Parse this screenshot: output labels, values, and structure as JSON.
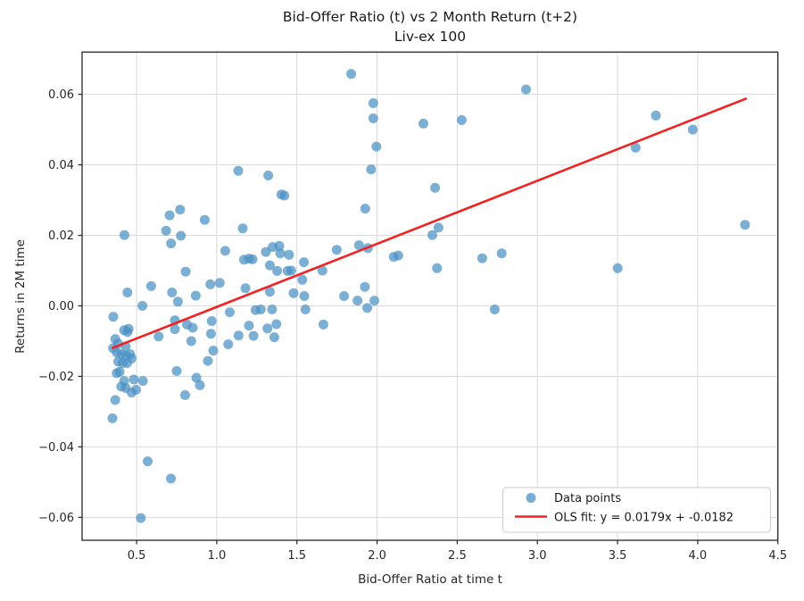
{
  "chart_data": {
    "type": "scatter",
    "title": "Bid-Offer Ratio (t) vs 2 Month Return (t+2)",
    "subtitle": "Liv-ex 100",
    "xlabel": "Bid-Offer Ratio at time t",
    "ylabel": "Returns in 2M time",
    "xlim": [
      0.16,
      4.5
    ],
    "ylim": [
      -0.0665,
      0.072
    ],
    "xticks": [
      0.5,
      1.0,
      1.5,
      2.0,
      2.5,
      3.0,
      3.5,
      4.0,
      4.5
    ],
    "xtick_labels": [
      "0.5",
      "1.0",
      "1.5",
      "2.0",
      "2.5",
      "3.0",
      "3.5",
      "4.0",
      "4.5"
    ],
    "yticks": [
      -0.06,
      -0.04,
      -0.02,
      0.0,
      0.02,
      0.04,
      0.06
    ],
    "ytick_labels": [
      "−0.06",
      "−0.04",
      "−0.02",
      "0.00",
      "0.02",
      "0.04",
      "0.06"
    ],
    "grid": true,
    "legend": {
      "position": "lower right",
      "entries": [
        {
          "label": "Data points",
          "marker": "dot"
        },
        {
          "label": "OLS fit: y = 0.0179x + -0.0182",
          "marker": "line"
        }
      ]
    },
    "ols_fit": {
      "slope": 0.0179,
      "intercept": -0.0182,
      "x_start": 0.35,
      "x_end": 4.3
    },
    "colors": {
      "point": "#4a90c4",
      "fit_line": "#f32222",
      "grid": "#d9d9d9",
      "axis": "#262626",
      "legend_border": "#cccccc"
    },
    "points": [
      [
        0.424,
        0.0201
      ],
      [
        0.684,
        0.0213
      ],
      [
        0.706,
        0.0257
      ],
      [
        0.771,
        0.0273
      ],
      [
        0.776,
        0.0199
      ],
      [
        0.715,
        0.0177
      ],
      [
        0.806,
        0.0097
      ],
      [
        0.925,
        0.0244
      ],
      [
        1.134,
        0.0383
      ],
      [
        1.321,
        0.037
      ],
      [
        1.403,
        0.0316
      ],
      [
        1.422,
        0.0313
      ],
      [
        1.839,
        0.0658
      ],
      [
        1.976,
        0.0575
      ],
      [
        1.976,
        0.0532
      ],
      [
        1.996,
        0.0452
      ],
      [
        1.963,
        0.0387
      ],
      [
        1.926,
        0.0276
      ],
      [
        1.887,
        0.0172
      ],
      [
        1.943,
        0.0164
      ],
      [
        1.748,
        0.0159
      ],
      [
        2.289,
        0.0517
      ],
      [
        2.528,
        0.0527
      ],
      [
        2.362,
        0.0335
      ],
      [
        2.345,
        0.0201
      ],
      [
        2.383,
        0.0222
      ],
      [
        2.929,
        0.0614
      ],
      [
        3.739,
        0.054
      ],
      [
        3.969,
        0.05
      ],
      [
        3.613,
        0.0449
      ],
      [
        4.295,
        0.023
      ],
      [
        1.053,
        0.0156
      ],
      [
        1.162,
        0.022
      ],
      [
        1.17,
        0.0131
      ],
      [
        1.201,
        0.0134
      ],
      [
        1.223,
        0.0132
      ],
      [
        1.306,
        0.0153
      ],
      [
        1.349,
        0.0167
      ],
      [
        1.39,
        0.017
      ],
      [
        1.396,
        0.0149
      ],
      [
        1.331,
        0.0115
      ],
      [
        1.377,
        0.0099
      ],
      [
        1.451,
        0.0145
      ],
      [
        1.442,
        0.0099
      ],
      [
        1.465,
        0.01
      ],
      [
        1.544,
        0.0124
      ],
      [
        1.534,
        0.0074
      ],
      [
        1.659,
        0.01
      ],
      [
        0.96,
        0.0061
      ],
      [
        1.019,
        0.0065
      ],
      [
        1.179,
        0.005
      ],
      [
        1.331,
        0.004
      ],
      [
        1.479,
        0.0036
      ],
      [
        1.546,
        0.0028
      ],
      [
        1.794,
        0.0028
      ],
      [
        1.878,
        0.0015
      ],
      [
        1.939,
        -0.0006
      ],
      [
        1.924,
        0.0054
      ],
      [
        1.983,
        0.0015
      ],
      [
        2.104,
        0.0139
      ],
      [
        2.132,
        0.0143
      ],
      [
        2.374,
        0.0107
      ],
      [
        2.656,
        0.0135
      ],
      [
        2.777,
        0.0149
      ],
      [
        2.734,
        -0.001
      ],
      [
        3.501,
        0.0107
      ],
      [
        0.443,
        0.0038
      ],
      [
        0.536,
        0.0
      ],
      [
        0.591,
        0.0056
      ],
      [
        0.721,
        0.0038
      ],
      [
        0.758,
        0.0012
      ],
      [
        0.869,
        0.0029
      ],
      [
        1.081,
        -0.0018
      ],
      [
        1.242,
        -0.0012
      ],
      [
        1.275,
        -0.001
      ],
      [
        1.345,
        -0.001
      ],
      [
        1.553,
        -0.001
      ],
      [
        1.372,
        -0.0052
      ],
      [
        1.201,
        -0.0056
      ],
      [
        1.136,
        -0.0084
      ],
      [
        1.229,
        -0.0085
      ],
      [
        1.316,
        -0.0064
      ],
      [
        1.359,
        -0.0089
      ],
      [
        1.071,
        -0.0109
      ],
      [
        1.665,
        -0.0053
      ],
      [
        0.969,
        -0.0043
      ],
      [
        0.964,
        -0.0079
      ],
      [
        0.978,
        -0.0127
      ],
      [
        0.945,
        -0.0156
      ],
      [
        0.739,
        -0.0041
      ],
      [
        0.814,
        -0.0053
      ],
      [
        0.443,
        -0.0074
      ],
      [
        0.637,
        -0.0087
      ],
      [
        0.739,
        -0.0066
      ],
      [
        0.85,
        -0.0062
      ],
      [
        0.841,
        -0.01
      ],
      [
        0.355,
        -0.0031
      ],
      [
        0.422,
        -0.0069
      ],
      [
        0.45,
        -0.0065
      ],
      [
        0.367,
        -0.0094
      ],
      [
        0.385,
        -0.0107
      ],
      [
        0.432,
        -0.0115
      ],
      [
        0.353,
        -0.012
      ],
      [
        0.376,
        -0.0132
      ],
      [
        0.404,
        -0.0137
      ],
      [
        0.432,
        -0.0141
      ],
      [
        0.46,
        -0.0137
      ],
      [
        0.469,
        -0.0149
      ],
      [
        0.385,
        -0.0158
      ],
      [
        0.413,
        -0.0162
      ],
      [
        0.441,
        -0.0162
      ],
      [
        0.394,
        -0.0187
      ],
      [
        0.376,
        -0.0191
      ],
      [
        0.422,
        -0.0213
      ],
      [
        0.483,
        -0.0209
      ],
      [
        0.539,
        -0.0213
      ],
      [
        0.404,
        -0.0229
      ],
      [
        0.432,
        -0.0233
      ],
      [
        0.469,
        -0.0246
      ],
      [
        0.497,
        -0.0238
      ],
      [
        0.367,
        -0.0267
      ],
      [
        0.349,
        -0.0319
      ],
      [
        0.75,
        -0.0185
      ],
      [
        0.873,
        -0.0204
      ],
      [
        0.895,
        -0.0225
      ],
      [
        0.803,
        -0.0253
      ],
      [
        0.569,
        -0.0441
      ],
      [
        0.714,
        -0.049
      ],
      [
        0.526,
        -0.0602
      ]
    ]
  }
}
